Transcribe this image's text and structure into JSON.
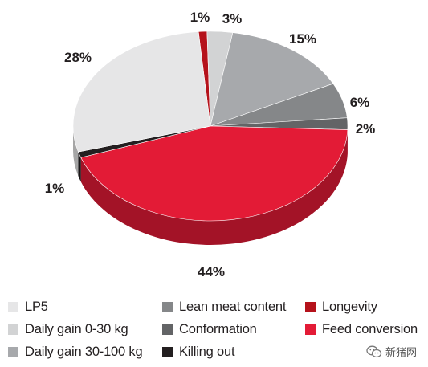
{
  "chart_data": {
    "type": "pie",
    "categories": [
      "LP5",
      "Daily gain 0-30 kg",
      "Daily gain 30-100 kg",
      "Lean meat content",
      "Conformation",
      "Killing out",
      "Longevity",
      "Feed conversion"
    ],
    "values": [
      28,
      3,
      15,
      6,
      2,
      1,
      1,
      44
    ],
    "value_labels": [
      "28%",
      "3%",
      "15%",
      "6%",
      "2%",
      "1%",
      "1%",
      "44%"
    ],
    "colors": [
      "#e6e6e7",
      "#d2d3d4",
      "#a7a9ac",
      "#858789",
      "#636466",
      "#231f20",
      "#b5121b",
      "#e31b36"
    ],
    "legend_position": "bottom",
    "title": ""
  },
  "legend": [
    {
      "label": "LP5",
      "color": "#e6e6e7"
    },
    {
      "label": "Daily gain 0-30 kg",
      "color": "#d2d3d4"
    },
    {
      "label": "Daily gain 30-100 kg",
      "color": "#a7a9ac"
    },
    {
      "label": "Lean meat content",
      "color": "#858789"
    },
    {
      "label": "Conformation",
      "color": "#636466"
    },
    {
      "label": "Killing out",
      "color": "#231f20"
    },
    {
      "label": "Longevity",
      "color": "#b5121b"
    },
    {
      "label": "Feed conversion",
      "color": "#e31b36"
    }
  ],
  "watermark": {
    "text": "新猪网",
    "icon": "wechat-icon"
  }
}
